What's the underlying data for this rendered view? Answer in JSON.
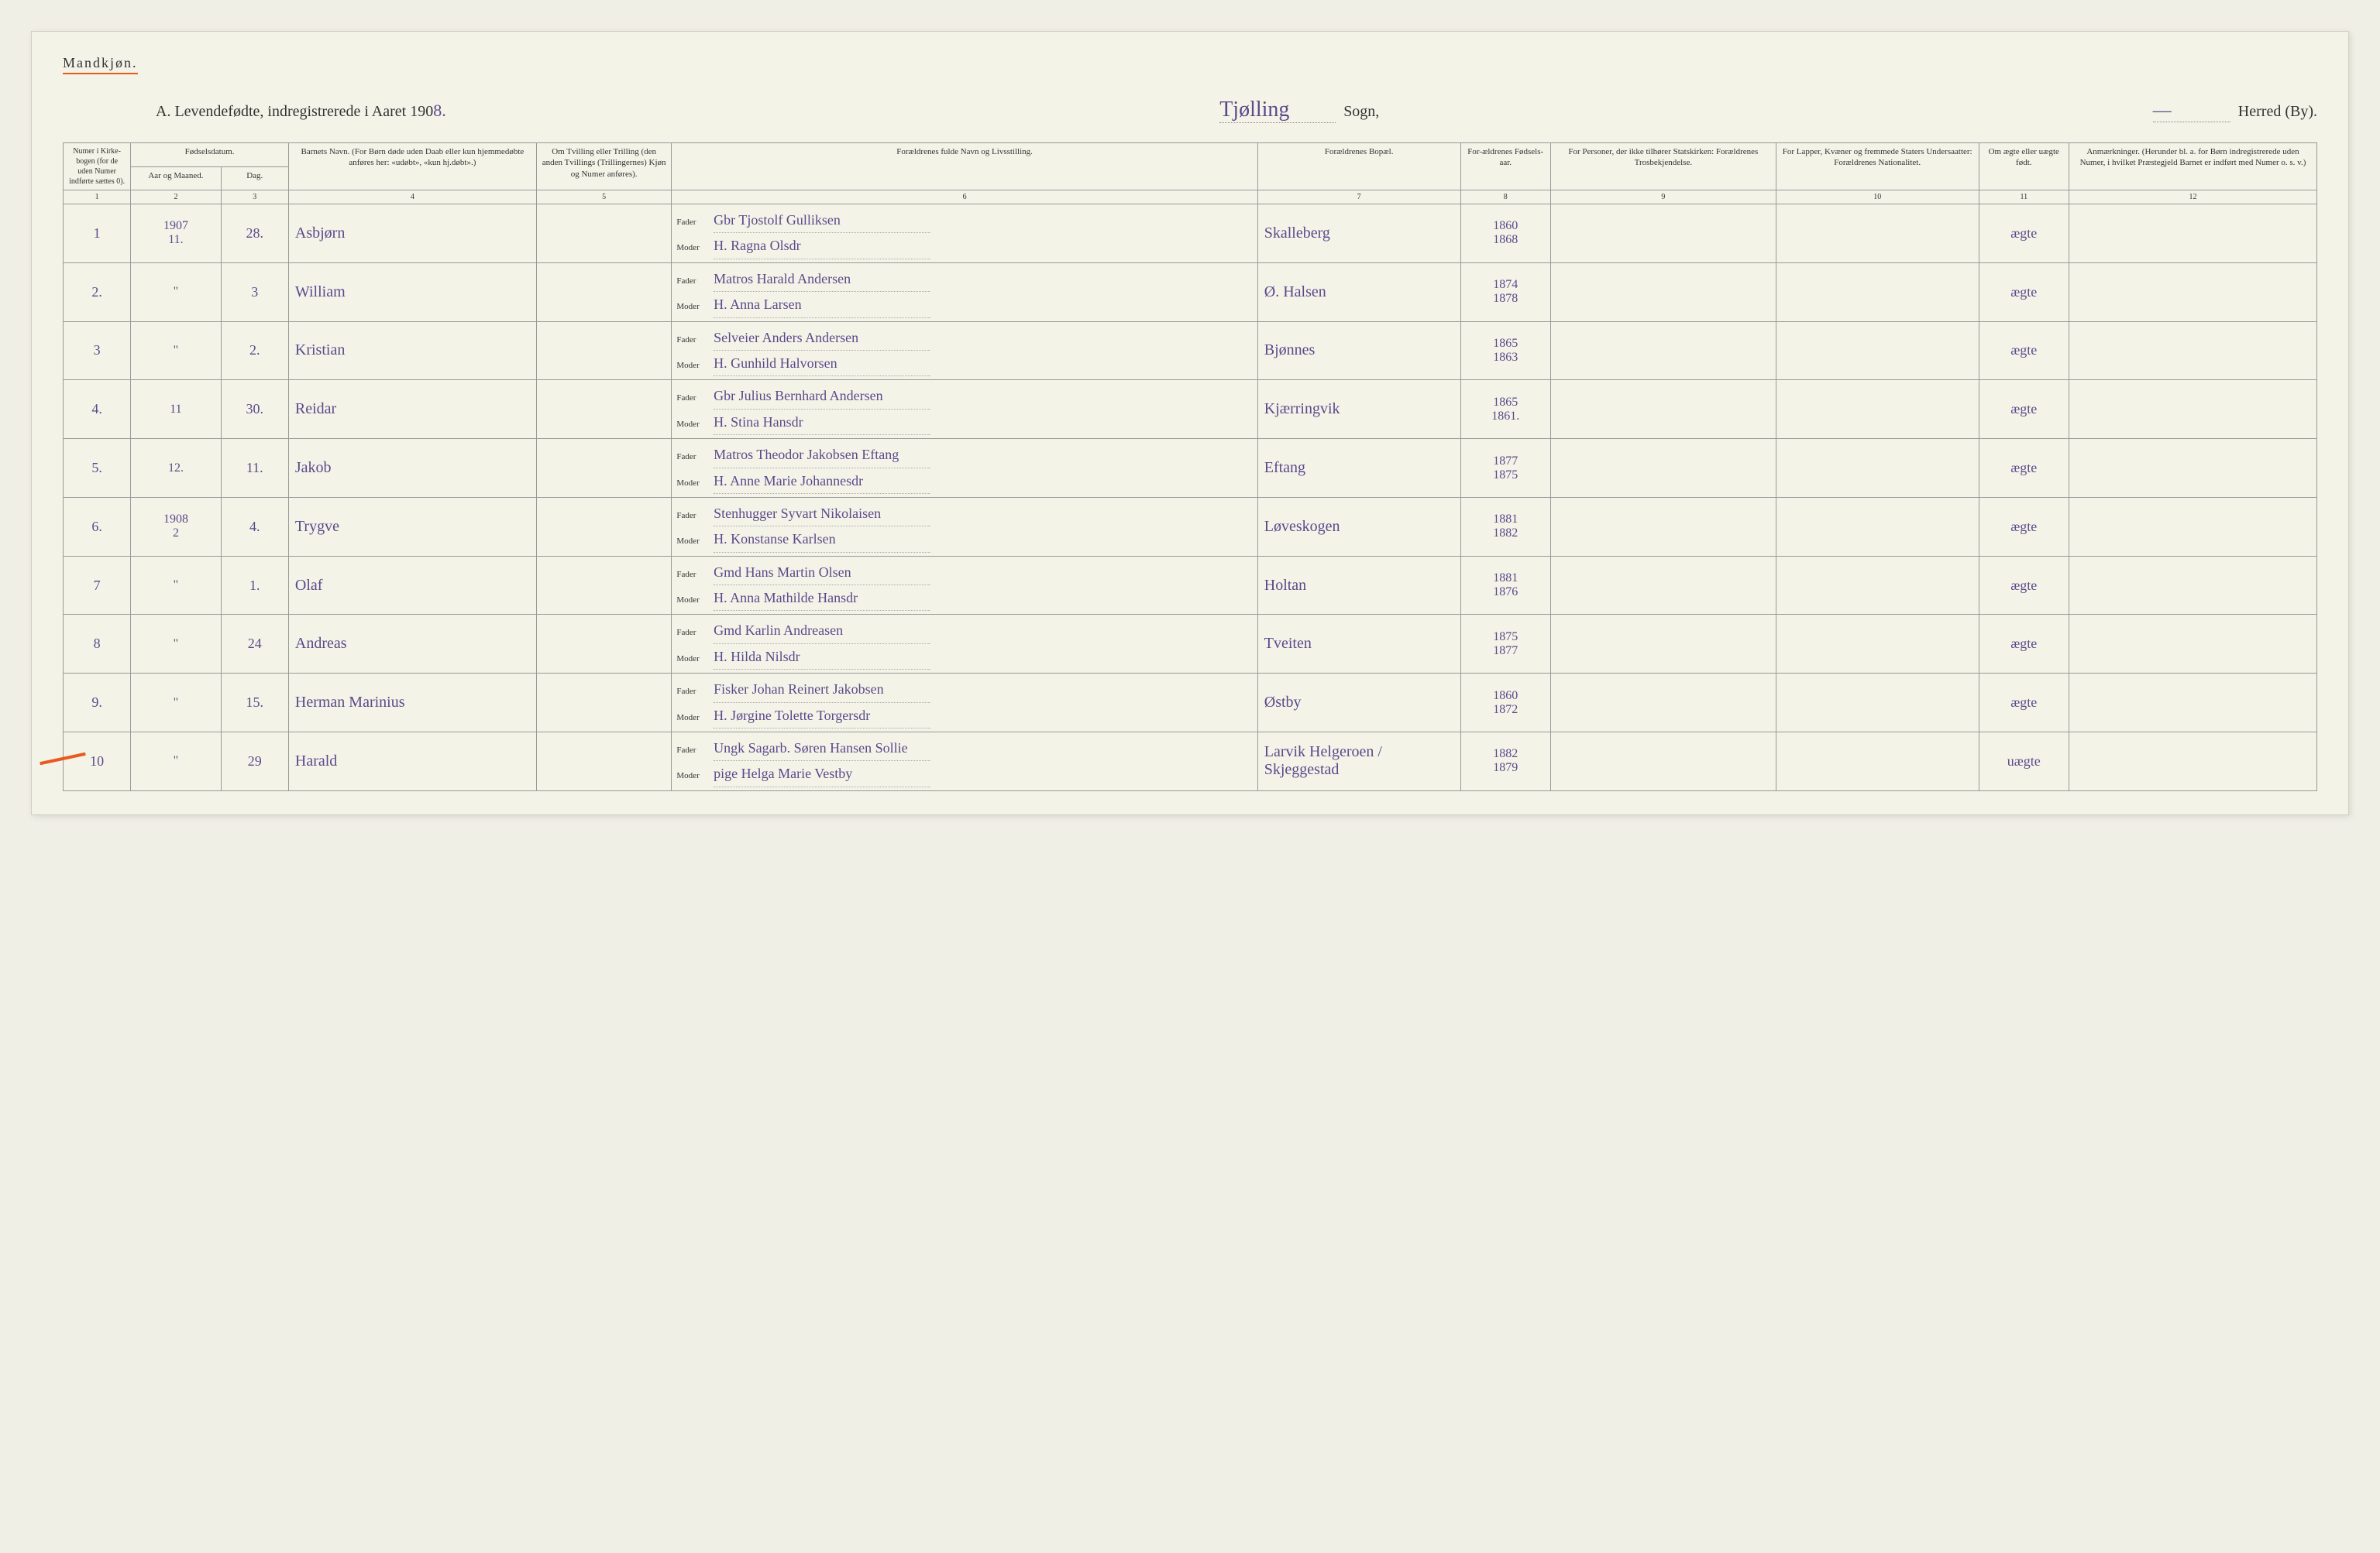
{
  "header": {
    "mandkjon": "Mandkjøn.",
    "title_prefix": "A.  Levendefødte, indregistrerede i Aaret 190",
    "year_suffix": "8.",
    "sogn_handwritten": "Tjølling",
    "sogn_label": "Sogn,",
    "herred_handwritten": "—",
    "herred_label": "Herred (By)."
  },
  "columns": {
    "c1": "Numer i Kirke-bogen (for de uden Numer indførte sættes 0).",
    "c_fd": "Fødselsdatum.",
    "c2": "Aar og Maaned.",
    "c3": "Dag.",
    "c4": "Barnets Navn.\n(For Børn døde uden Daab eller kun hjemmedøbte anføres her: «udøbt», «kun hj.døbt».)",
    "c5": "Om Tvilling eller Trilling (den anden Tvillings (Trillingernes) Kjøn og Numer anføres).",
    "c6": "Forældrenes fulde Navn og Livsstilling.",
    "c7": "Forældrenes Bopæl.",
    "c8": "For-ældrenes Fødsels-aar.",
    "c9": "For Personer, der ikke tilhører Statskirken: Forældrenes Trosbekjendelse.",
    "c10": "For Lapper, Kvæner og fremmede Staters Undersaatter: Forældrenes Nationalitet.",
    "c11": "Om ægte eller uægte født.",
    "c12": "Anmærkninger.\n(Herunder bl. a. for Børn indregistrerede uden Numer, i hvilket Præstegjeld Barnet er indført med Numer o. s. v.)"
  },
  "colnums": [
    "1",
    "2",
    "3",
    "4",
    "5",
    "6",
    "7",
    "8",
    "9",
    "10",
    "11",
    "12"
  ],
  "labels": {
    "fader": "Fader",
    "moder": "Moder"
  },
  "rows": [
    {
      "n": "1",
      "ym": "1907\n11.",
      "day": "28.",
      "name": "Asbjørn",
      "fader": "Gbr Tjostolf Gulliksen",
      "moder": "H. Ragna Olsdr",
      "bopael": "Skalleberg",
      "fy": "1860",
      "my": "1868",
      "legit": "ægte"
    },
    {
      "n": "2.",
      "ym": "\"",
      "day": "3",
      "name": "William",
      "fader": "Matros Harald Andersen",
      "moder": "H. Anna Larsen",
      "bopael": "Ø. Halsen",
      "fy": "1874",
      "my": "1878",
      "legit": "ægte"
    },
    {
      "n": "3",
      "ym": "\"",
      "day": "2.",
      "name": "Kristian",
      "fader": "Selveier Anders Andersen",
      "moder": "H. Gunhild Halvorsen",
      "bopael": "Bjønnes",
      "fy": "1865",
      "my": "1863",
      "legit": "ægte"
    },
    {
      "n": "4.",
      "ym": "11",
      "day": "30.",
      "name": "Reidar",
      "fader": "Gbr Julius Bernhard Andersen",
      "moder": "H. Stina Hansdr",
      "bopael": "Kjærringvik",
      "fy": "1865",
      "my": "1861.",
      "legit": "ægte"
    },
    {
      "n": "5.",
      "ym": "12.",
      "day": "11.",
      "name": "Jakob",
      "fader": "Matros Theodor Jakobsen Eftang",
      "moder": "H. Anne Marie Johannesdr",
      "bopael": "Eftang",
      "fy": "1877",
      "my": "1875",
      "legit": "ægte"
    },
    {
      "n": "6.",
      "ym": "1908\n2",
      "day": "4.",
      "name": "Trygve",
      "fader": "Stenhugger Syvart Nikolaisen",
      "moder": "H. Konstanse Karlsen",
      "bopael": "Løveskogen",
      "fy": "1881",
      "my": "1882",
      "legit": "ægte"
    },
    {
      "n": "7",
      "ym": "\"",
      "day": "1.",
      "name": "Olaf",
      "fader": "Gmd Hans Martin Olsen",
      "moder": "H. Anna Mathilde Hansdr",
      "bopael": "Holtan",
      "fy": "1881",
      "my": "1876",
      "legit": "ægte"
    },
    {
      "n": "8",
      "ym": "\"",
      "day": "24",
      "name": "Andreas",
      "fader": "Gmd Karlin Andreasen",
      "moder": "H. Hilda Nilsdr",
      "bopael": "Tveiten",
      "fy": "1875",
      "my": "1877",
      "legit": "ægte"
    },
    {
      "n": "9.",
      "ym": "\"",
      "day": "15.",
      "name": "Herman Marinius",
      "fader": "Fisker Johan Reinert Jakobsen",
      "moder": "H. Jørgine Tolette Torgersdr",
      "bopael": "Østby",
      "fy": "1860",
      "my": "1872",
      "legit": "ægte"
    },
    {
      "n": "10",
      "ym": "\"",
      "day": "29",
      "name": "Harald",
      "fader": "Ungk Sagarb. Søren Hansen Sollie",
      "moder": "pige Helga Marie Vestby",
      "bopael": "Larvik Helgeroen / Skjeggestad",
      "fy": "1882",
      "my": "1879",
      "legit": "uægte"
    }
  ]
}
